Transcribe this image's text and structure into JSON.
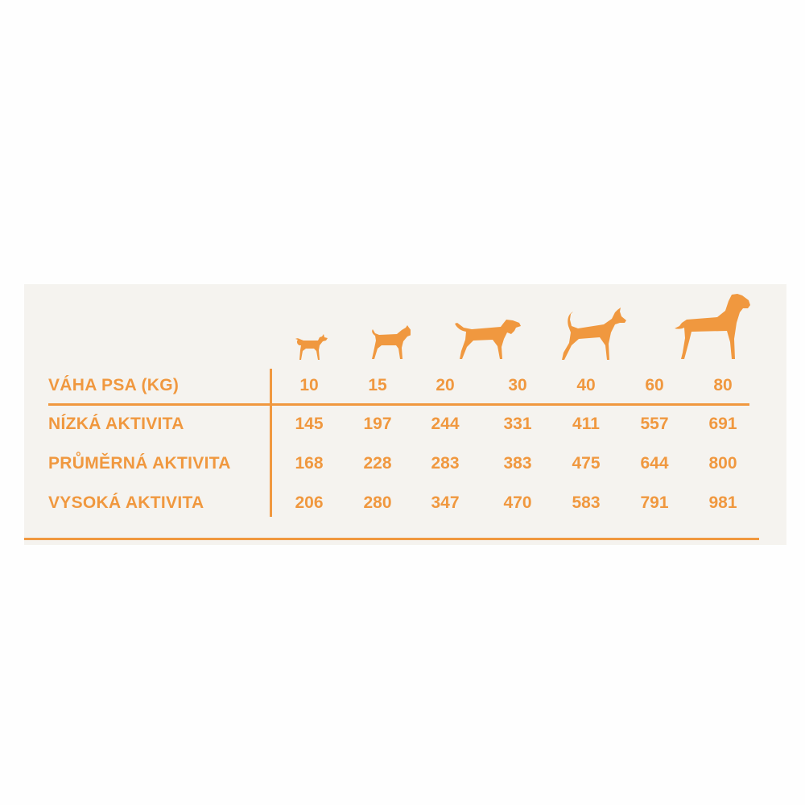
{
  "table": {
    "header_label": "VÁHA PSA (KG)",
    "weights": [
      "10",
      "15",
      "20",
      "30",
      "40",
      "60",
      "80"
    ],
    "rows": [
      {
        "label": "NÍZKÁ AKTIVITA",
        "values": [
          "145",
          "197",
          "244",
          "331",
          "411",
          "557",
          "691"
        ]
      },
      {
        "label": "PRŮMĚRNÁ AKTIVITA",
        "values": [
          "168",
          "228",
          "283",
          "383",
          "475",
          "644",
          "800"
        ]
      },
      {
        "label": "VYSOKÁ AKTIVITA",
        "values": [
          "206",
          "280",
          "347",
          "470",
          "583",
          "791",
          "981"
        ]
      }
    ]
  },
  "icons": [
    "chihuahua-icon",
    "boxer-icon",
    "hound-icon",
    "doberman-icon",
    "great-dane-icon"
  ],
  "colors": {
    "accent": "#f0983f",
    "panel": "#f5f3ef"
  }
}
